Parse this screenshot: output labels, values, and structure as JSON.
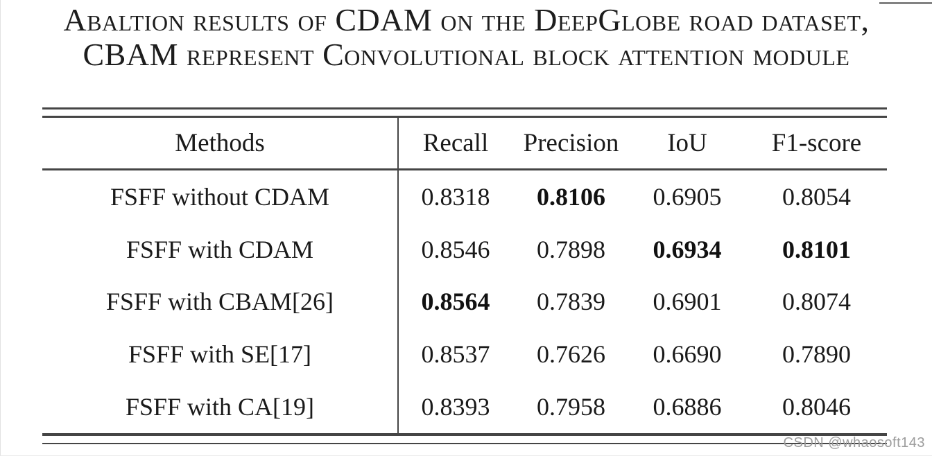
{
  "caption": {
    "line1": "Abaltion results of CDAM on the DeepGlobe road dataset,",
    "line2": "CBAM represent Convolutional block attention module"
  },
  "table": {
    "columns": [
      "Methods",
      "Recall",
      "Precision",
      "IoU",
      "F1-score"
    ],
    "rows": [
      {
        "method": "FSFF without CDAM",
        "values": [
          "0.8318",
          "0.8106",
          "0.6905",
          "0.8054"
        ],
        "bold": [
          false,
          true,
          false,
          false
        ]
      },
      {
        "method": "FSFF with CDAM",
        "values": [
          "0.8546",
          "0.7898",
          "0.6934",
          "0.8101"
        ],
        "bold": [
          false,
          false,
          true,
          true
        ]
      },
      {
        "method": "FSFF with CBAM[26]",
        "values": [
          "0.8564",
          "0.7839",
          "0.6901",
          "0.8074"
        ],
        "bold": [
          true,
          false,
          false,
          false
        ]
      },
      {
        "method": "FSFF with SE[17]",
        "values": [
          "0.8537",
          "0.7626",
          "0.6690",
          "0.7890"
        ],
        "bold": [
          false,
          false,
          false,
          false
        ]
      },
      {
        "method": "FSFF with CA[19]",
        "values": [
          "0.8393",
          "0.7958",
          "0.6886",
          "0.8046"
        ],
        "bold": [
          false,
          false,
          false,
          false
        ]
      }
    ]
  },
  "watermark": "CSDN @whaosoft143",
  "colors": {
    "background": "#ffffff",
    "text": "#1a1a1a",
    "rule": "#454545",
    "watermark": "#9c9c9c"
  }
}
